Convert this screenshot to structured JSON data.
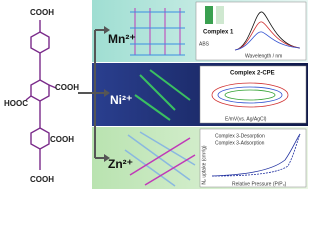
{
  "molecule": {
    "labels": [
      "COOH",
      "COOH",
      "HOOC",
      "COOH",
      "COOH"
    ]
  },
  "panels": [
    {
      "ion": "Mn²⁺",
      "inset": {
        "title": "Complex 1",
        "y_label": "ABS",
        "x_label": "Wavelength / nm"
      }
    },
    {
      "ion": "Ni²⁺",
      "inset": {
        "title": "Complex 2-CPE",
        "x_label": "E/mV(vs. Ag/AgCl)"
      }
    },
    {
      "ion": "Zn²⁺",
      "inset": {
        "legend": [
          "Complex 3-Desorption",
          "Complex 3-Adsorption"
        ],
        "y_label": "N₂ uptake (cm³/g)",
        "x_label": "Relative Pressure (P/P₀)"
      }
    }
  ]
}
